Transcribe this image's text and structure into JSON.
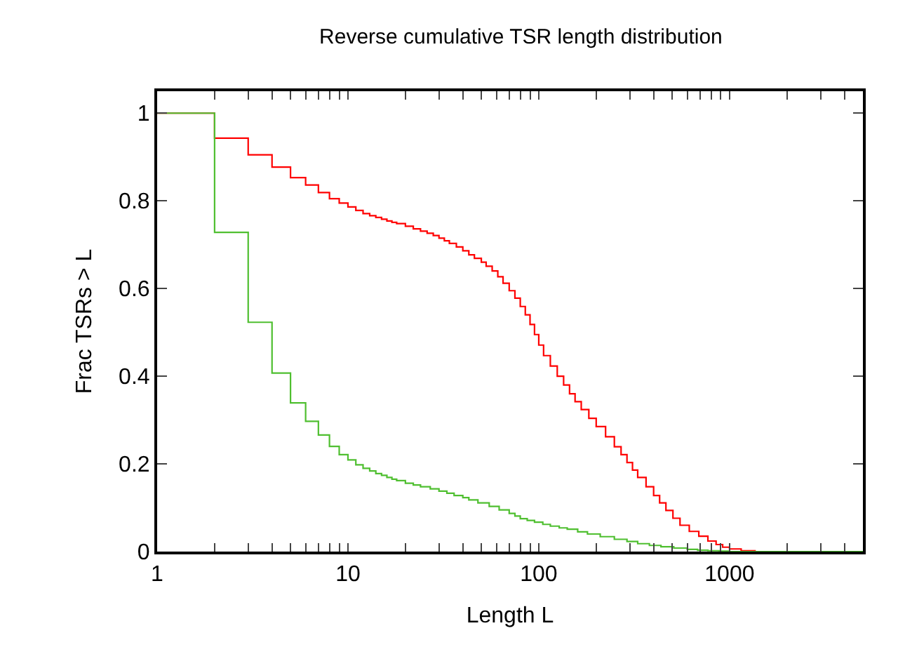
{
  "chart_data": {
    "type": "step",
    "title": "Reverse cumulative TSR length distribution",
    "xlabel": "Length L",
    "ylabel": "Frac TSRs > L",
    "log": "x",
    "legend": false,
    "marker": "none",
    "line_style": "solid",
    "xlim": [
      1,
      5000
    ],
    "ylim": [
      0,
      1.05
    ],
    "xticks": [
      1,
      {
        "value": 2,
        "label": null
      },
      {
        "value": 3,
        "label": null
      },
      {
        "value": 4,
        "label": null
      },
      {
        "value": 5,
        "label": null
      },
      {
        "value": 6,
        "label": null
      },
      {
        "value": 7,
        "label": null
      },
      {
        "value": 8,
        "label": null
      },
      {
        "value": 9,
        "label": null
      },
      10,
      {
        "value": 20,
        "label": null
      },
      {
        "value": 30,
        "label": null
      },
      {
        "value": 40,
        "label": null
      },
      {
        "value": 50,
        "label": null
      },
      {
        "value": 60,
        "label": null
      },
      {
        "value": 70,
        "label": null
      },
      {
        "value": 80,
        "label": null
      },
      {
        "value": 90,
        "label": null
      },
      100,
      {
        "value": 200,
        "label": null
      },
      {
        "value": 300,
        "label": null
      },
      {
        "value": 400,
        "label": null
      },
      {
        "value": 500,
        "label": null
      },
      {
        "value": 600,
        "label": null
      },
      {
        "value": 700,
        "label": null
      },
      {
        "value": 800,
        "label": null
      },
      {
        "value": 900,
        "label": null
      },
      1000,
      {
        "value": 2000,
        "label": null
      },
      {
        "value": 3000,
        "label": null
      },
      {
        "value": 4000,
        "label": null
      },
      {
        "value": 5000,
        "label": null
      }
    ],
    "yticks": [
      0,
      0.2,
      0.4,
      0.6,
      0.8,
      1
    ],
    "series": [
      {
        "color": "#ff0000",
        "x": [
          1,
          2,
          3,
          4,
          5,
          6,
          7,
          8,
          9,
          10,
          11,
          12,
          13,
          14,
          15,
          16,
          17,
          18,
          20,
          22,
          24,
          26,
          28,
          30,
          32,
          34,
          37,
          40,
          43,
          46,
          50,
          53,
          57,
          61,
          65,
          70,
          75,
          80,
          85,
          90,
          95,
          100,
          106,
          115,
          125,
          135,
          145,
          155,
          167,
          183,
          200,
          224,
          249,
          270,
          290,
          310,
          330,
          365,
          400,
          430,
          464,
          505,
          550,
          615,
          690,
          770,
          850,
          920,
          1000,
          1150,
          1360,
          5000
        ],
        "values": [
          1.0,
          0.943,
          0.905,
          0.877,
          0.853,
          0.836,
          0.819,
          0.805,
          0.795,
          0.786,
          0.778,
          0.771,
          0.766,
          0.762,
          0.758,
          0.754,
          0.751,
          0.748,
          0.742,
          0.736,
          0.731,
          0.726,
          0.721,
          0.715,
          0.709,
          0.703,
          0.695,
          0.686,
          0.677,
          0.669,
          0.66,
          0.651,
          0.64,
          0.627,
          0.612,
          0.595,
          0.578,
          0.559,
          0.54,
          0.518,
          0.495,
          0.471,
          0.447,
          0.423,
          0.4,
          0.38,
          0.36,
          0.342,
          0.324,
          0.304,
          0.285,
          0.262,
          0.239,
          0.221,
          0.203,
          0.186,
          0.169,
          0.148,
          0.128,
          0.111,
          0.094,
          0.076,
          0.06,
          0.046,
          0.035,
          0.024,
          0.016,
          0.01,
          0.006,
          0.002,
          0,
          0
        ]
      },
      {
        "color": "#4fbf30",
        "x": [
          1,
          2,
          3,
          4,
          5,
          6,
          7,
          8,
          9,
          10,
          11,
          12,
          13,
          14,
          15,
          16,
          17,
          18,
          20,
          22,
          24,
          27,
          30,
          33,
          36,
          40,
          43,
          48,
          55,
          62,
          70,
          75,
          80,
          87,
          95,
          105,
          115,
          128,
          141,
          160,
          180,
          210,
          249,
          290,
          330,
          380,
          437,
          510,
          600,
          680,
          770,
          880,
          1000,
          5000
        ],
        "values": [
          1.0,
          0.728,
          0.523,
          0.407,
          0.339,
          0.297,
          0.266,
          0.24,
          0.221,
          0.209,
          0.198,
          0.19,
          0.184,
          0.178,
          0.174,
          0.169,
          0.165,
          0.162,
          0.156,
          0.152,
          0.148,
          0.143,
          0.138,
          0.133,
          0.128,
          0.123,
          0.118,
          0.111,
          0.103,
          0.095,
          0.087,
          0.081,
          0.075,
          0.071,
          0.067,
          0.062,
          0.058,
          0.054,
          0.051,
          0.045,
          0.04,
          0.034,
          0.028,
          0.023,
          0.018,
          0.014,
          0.011,
          0.008,
          0.005,
          0.003,
          0.002,
          0.001,
          0,
          0
        ]
      }
    ]
  }
}
